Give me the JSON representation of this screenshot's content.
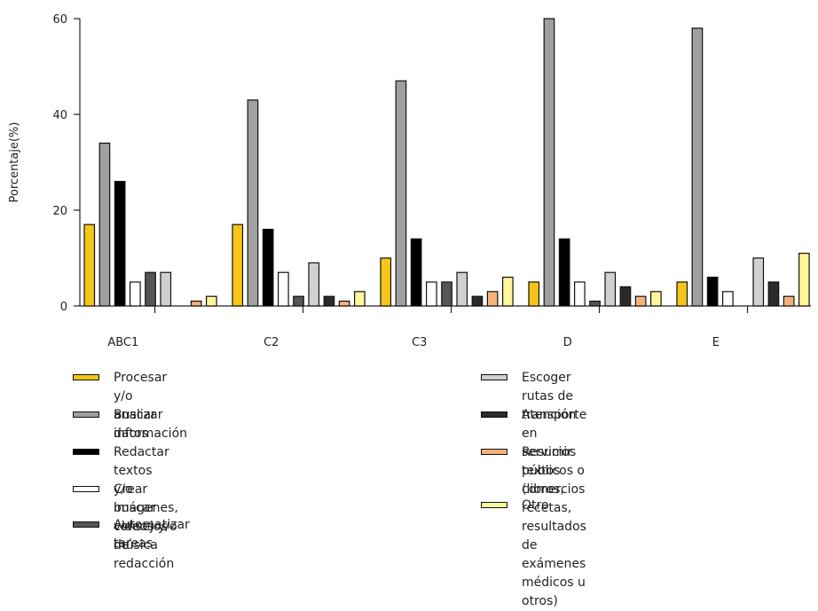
{
  "chart_data": {
    "type": "bar",
    "ylabel": "Porcentaje(%)",
    "xlabel": "",
    "ylim": [
      0,
      60
    ],
    "yticks": [
      0,
      20,
      40,
      60
    ],
    "categories": [
      "ABC1",
      "C2",
      "C3",
      "D",
      "E"
    ],
    "grid": false,
    "legend_position": "bottom",
    "series": [
      {
        "name": "Procesar y/o analizar datos",
        "color": "#F5C518",
        "values": [
          17,
          17,
          10,
          5,
          5
        ]
      },
      {
        "name": "Buscar información",
        "color": "#A0A0A0",
        "values": [
          34,
          43,
          47,
          60,
          58
        ]
      },
      {
        "name": "Redactar textos y/o buscar consejos de redacción",
        "color": "#000000",
        "values": [
          26,
          16,
          14,
          14,
          6
        ]
      },
      {
        "name": "Crear imágenes, videos y/o música",
        "color": "#FFFFFF",
        "values": [
          5,
          7,
          5,
          5,
          3
        ]
      },
      {
        "name": "Automatizar tareas",
        "color": "#555555",
        "values": [
          7,
          2,
          5,
          1,
          0
        ]
      },
      {
        "name": "Escoger rutas de transporte",
        "color": "#D0D0D0",
        "values": [
          7,
          9,
          7,
          7,
          10
        ]
      },
      {
        "name": "Atención en servicios públicos o comercios",
        "color": "#2A2A2A",
        "values": [
          0,
          2,
          2,
          4,
          5
        ]
      },
      {
        "name": "Resumir textos (libros, recetas, resultados de exámenes médicos u otros)",
        "color": "#F6B27A",
        "values": [
          1,
          1,
          3,
          2,
          2
        ]
      },
      {
        "name": "Otro",
        "color": "#FFF59A",
        "values": [
          2,
          3,
          6,
          3,
          11
        ]
      }
    ]
  },
  "legend": {
    "left": [
      0,
      1,
      2,
      3,
      4
    ],
    "right": [
      5,
      6,
      7,
      8
    ],
    "right_lines": {
      "7": [
        "Resumir textos (libros, recetas, resultados de",
        "exámenes médicos u otros)"
      ]
    }
  }
}
